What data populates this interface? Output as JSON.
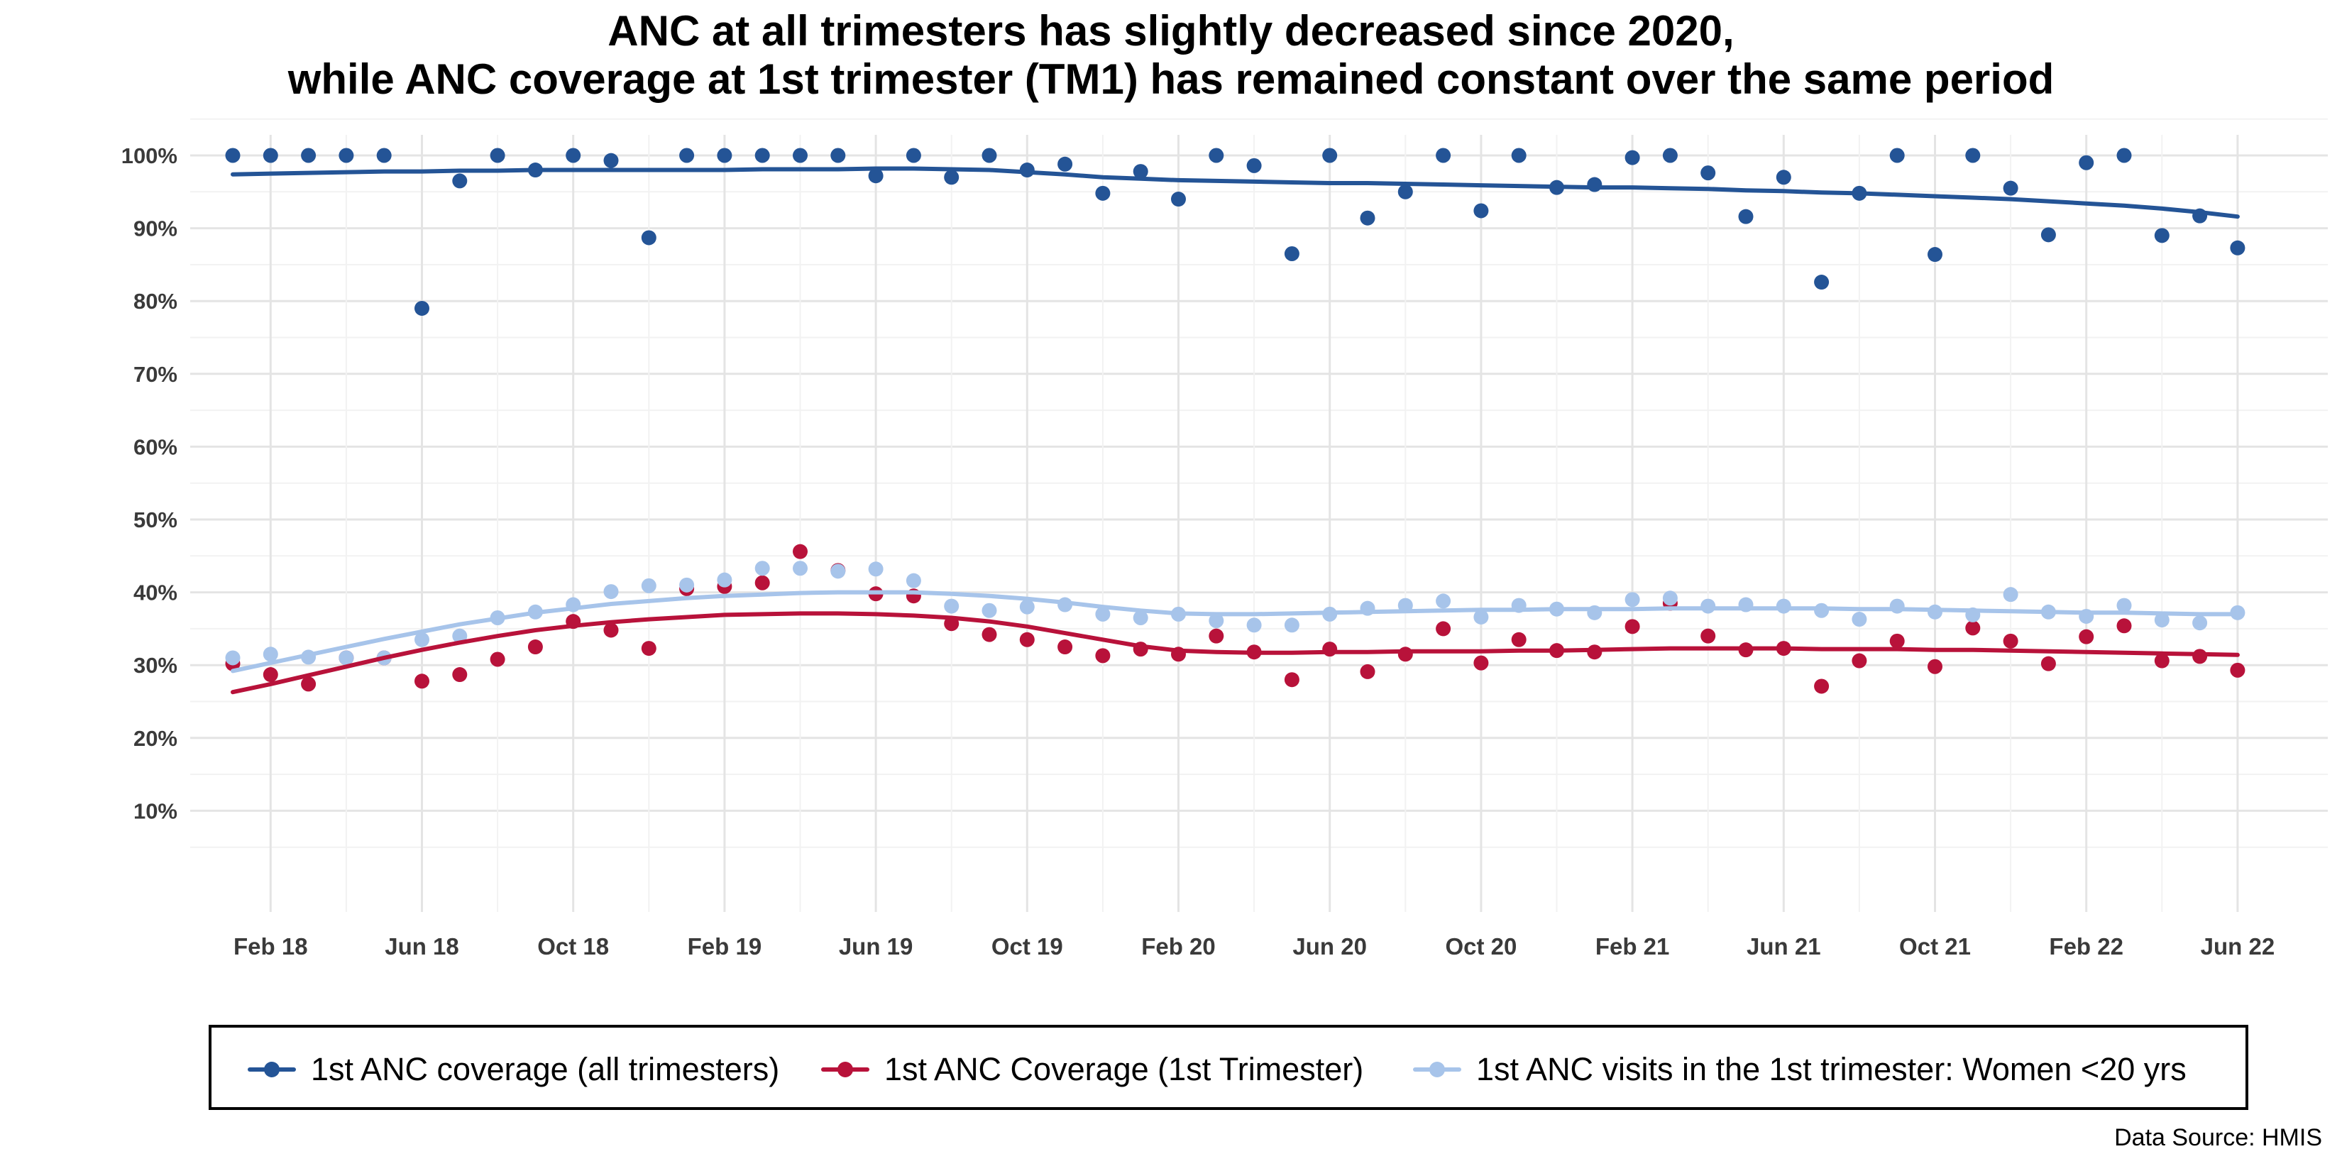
{
  "chart_data": {
    "type": "scatter",
    "title": "ANC at all trimesters has slightly decreased since 2020,",
    "subtitle": "while ANC coverage at 1st trimester (TM1) has remained constant over the same period",
    "xlabel": "",
    "ylabel": "",
    "x_ticks": [
      "Feb 18",
      "Jun 18",
      "Oct 18",
      "Feb 19",
      "Jun 19",
      "Oct 19",
      "Feb 20",
      "Jun 20",
      "Oct 20",
      "Feb 21",
      "Jun 21",
      "Oct 21",
      "Feb 22",
      "Jun 22"
    ],
    "x": [
      "2018-01",
      "2018-02",
      "2018-03",
      "2018-04",
      "2018-05",
      "2018-06",
      "2018-07",
      "2018-08",
      "2018-09",
      "2018-10",
      "2018-11",
      "2018-12",
      "2019-01",
      "2019-02",
      "2019-03",
      "2019-04",
      "2019-05",
      "2019-06",
      "2019-07",
      "2019-08",
      "2019-09",
      "2019-10",
      "2019-11",
      "2019-12",
      "2020-01",
      "2020-02",
      "2020-03",
      "2020-04",
      "2020-05",
      "2020-06",
      "2020-07",
      "2020-08",
      "2020-09",
      "2020-10",
      "2020-11",
      "2020-12",
      "2021-01",
      "2021-02",
      "2021-03",
      "2021-04",
      "2021-05",
      "2021-06",
      "2021-07",
      "2021-08",
      "2021-09",
      "2021-10",
      "2021-11",
      "2021-12",
      "2022-01",
      "2022-02",
      "2022-03",
      "2022-04",
      "2022-05",
      "2022-06"
    ],
    "y_ticks": [
      "10%",
      "20%",
      "30%",
      "40%",
      "50%",
      "60%",
      "70%",
      "80%",
      "90%",
      "100%"
    ],
    "ylim": [
      0,
      105
    ],
    "grid": true,
    "legend_position": "bottom",
    "series": [
      {
        "name": "1st ANC coverage (all trimesters)",
        "color": "#245496",
        "values": [
          100,
          100,
          100,
          100,
          100,
          79,
          96.5,
          100,
          98,
          100,
          99.3,
          88.7,
          100,
          100,
          100,
          100,
          100,
          97.2,
          100,
          97,
          100,
          98,
          98.8,
          94.8,
          97.8,
          94,
          100,
          98.6,
          86.5,
          100,
          91.4,
          95,
          100,
          92.4,
          100,
          95.6,
          96,
          99.7,
          100,
          97.6,
          91.6,
          97,
          82.6,
          94.8,
          100,
          86.4,
          100,
          95.5,
          89.1,
          99,
          100,
          89,
          91.7,
          87.3
        ],
        "trend": [
          97.4,
          97.5,
          97.6,
          97.7,
          97.8,
          97.8,
          97.9,
          97.9,
          98.0,
          98.0,
          98.0,
          98.0,
          98.0,
          98.0,
          98.1,
          98.1,
          98.1,
          98.2,
          98.2,
          98.1,
          98.0,
          97.7,
          97.4,
          97.0,
          96.8,
          96.6,
          96.5,
          96.4,
          96.3,
          96.2,
          96.2,
          96.1,
          96.0,
          95.9,
          95.8,
          95.7,
          95.6,
          95.6,
          95.5,
          95.4,
          95.2,
          95.1,
          94.9,
          94.8,
          94.6,
          94.4,
          94.2,
          94.0,
          93.7,
          93.4,
          93.1,
          92.7,
          92.2,
          91.6
        ]
      },
      {
        "name": "1st ANC Coverage (1st Trimester)",
        "color": "#b8123a",
        "values": [
          30.2,
          28.7,
          27.4,
          31,
          31,
          27.8,
          28.7,
          30.8,
          32.5,
          36,
          34.8,
          32.3,
          40.5,
          40.8,
          41.3,
          45.6,
          43,
          39.8,
          39.5,
          35.7,
          34.2,
          33.5,
          32.5,
          31.3,
          32.2,
          31.5,
          34,
          31.8,
          28,
          32.2,
          29.1,
          31.5,
          35,
          30.3,
          33.5,
          32,
          31.8,
          35.3,
          38.5,
          34,
          32.1,
          32.3,
          27.1,
          30.6,
          33.3,
          29.8,
          35.1,
          33.3,
          30.2,
          33.9,
          35.4,
          30.6,
          31.2,
          29.3
        ],
        "trend": [
          26.3,
          27.4,
          28.6,
          29.8,
          31.0,
          32.1,
          33.1,
          34.0,
          34.8,
          35.4,
          35.9,
          36.3,
          36.6,
          36.9,
          37.0,
          37.1,
          37.1,
          37.0,
          36.8,
          36.5,
          36.0,
          35.3,
          34.4,
          33.5,
          32.6,
          32.0,
          31.8,
          31.7,
          31.7,
          31.8,
          31.8,
          31.9,
          31.9,
          31.9,
          32.0,
          32.0,
          32.1,
          32.2,
          32.3,
          32.3,
          32.3,
          32.3,
          32.2,
          32.2,
          32.2,
          32.1,
          32.1,
          32.0,
          31.9,
          31.8,
          31.7,
          31.6,
          31.5,
          31.4
        ]
      },
      {
        "name": "1st ANC visits in the 1st trimester: Women <20 yrs",
        "color": "#a7c4ea",
        "values": [
          31,
          31.5,
          31.1,
          31,
          31,
          33.5,
          34,
          36.5,
          37.3,
          38.3,
          40.1,
          40.9,
          41,
          41.7,
          43.3,
          43.3,
          42.9,
          43.2,
          41.6,
          38.1,
          37.5,
          38,
          38.3,
          37,
          36.5,
          37,
          36.1,
          35.5,
          35.5,
          37,
          37.8,
          38.2,
          38.8,
          36.6,
          38.2,
          37.7,
          37.2,
          39,
          39.2,
          38.1,
          38.3,
          38.1,
          37.5,
          36.3,
          38.1,
          37.3,
          36.9,
          39.7,
          37.3,
          36.7,
          38.2,
          36.2,
          35.8,
          37.2
        ],
        "trend": [
          29.2,
          30.3,
          31.4,
          32.5,
          33.6,
          34.6,
          35.6,
          36.4,
          37.2,
          37.8,
          38.4,
          38.8,
          39.2,
          39.5,
          39.7,
          39.9,
          40.0,
          40.0,
          40.0,
          39.8,
          39.5,
          39.1,
          38.6,
          38.0,
          37.5,
          37.1,
          37.0,
          37.0,
          37.1,
          37.2,
          37.3,
          37.4,
          37.5,
          37.6,
          37.6,
          37.7,
          37.7,
          37.7,
          37.8,
          37.8,
          37.8,
          37.8,
          37.8,
          37.7,
          37.7,
          37.6,
          37.5,
          37.4,
          37.3,
          37.2,
          37.2,
          37.1,
          37.0,
          37.0
        ]
      }
    ],
    "source": "Data Source: HMIS"
  }
}
